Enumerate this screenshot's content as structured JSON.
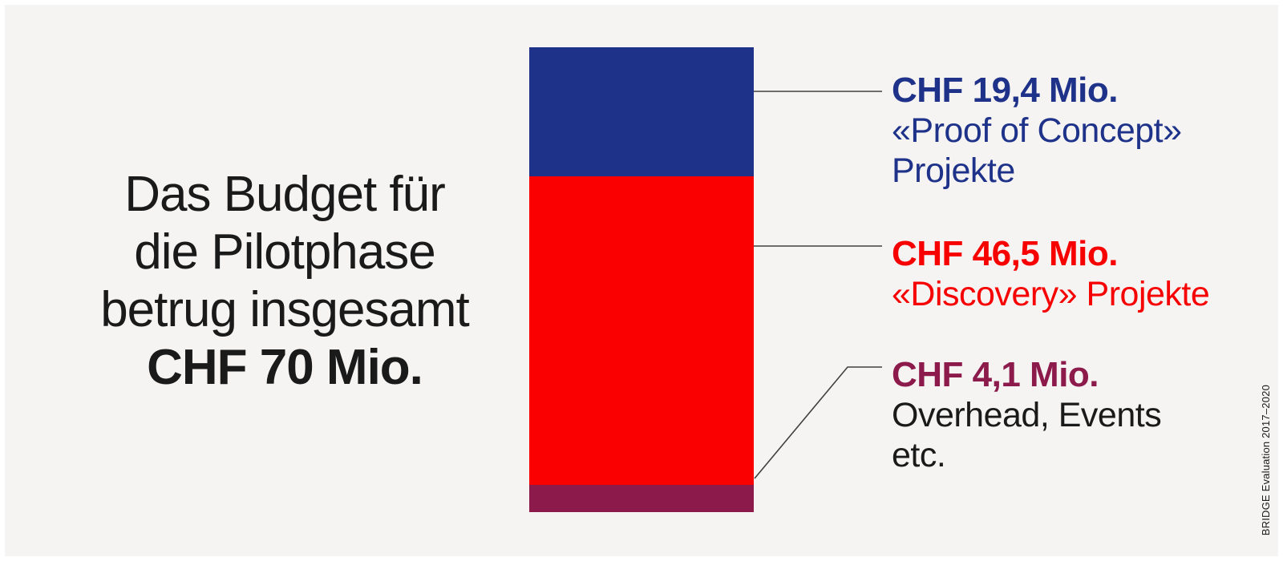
{
  "colors": {
    "background": "#f5f4f3",
    "frame": "#ffffff",
    "leader_line": "#404040",
    "text": "#1a1a1a"
  },
  "intro": {
    "lines": [
      "Das Budget für",
      "die Pilotphase",
      "betrug insgesamt"
    ],
    "total_line": "CHF 70 Mio."
  },
  "chart_data": {
    "type": "bar",
    "stacked": true,
    "orientation": "vertical",
    "unit": "CHF Mio.",
    "title": "Das Budget für die Pilotphase betrug insgesamt CHF 70 Mio.",
    "total": {
      "value": 70,
      "label": "CHF 70 Mio."
    },
    "legend_position": "right-callouts",
    "grid": false,
    "segments": [
      {
        "id": "proof-of-concept",
        "name": "«Proof of Concept» Projekte",
        "value": 19.4,
        "value_label": "CHF 19,4 Mio.",
        "color": "#1e3289",
        "label_color": "#1e3289",
        "desc_color": "#1e3289",
        "desc_lines": [
          "«Proof of Concept»",
          "Projekte"
        ]
      },
      {
        "id": "discovery",
        "name": "«Discovery» Projekte",
        "value": 46.5,
        "value_label": "CHF 46,5 Mio.",
        "color": "#fb0000",
        "label_color": "#f60000",
        "desc_color": "#f60000",
        "desc_lines": [
          "«Discovery» Projekte"
        ]
      },
      {
        "id": "overhead",
        "name": "Overhead, Events etc.",
        "value": 4.1,
        "value_label": "CHF 4,1 Mio.",
        "color": "#8c1a4b",
        "label_color": "#8c1a4b",
        "desc_color": "#1a1a1a",
        "desc_lines": [
          "Overhead, Events",
          "etc."
        ]
      }
    ]
  },
  "footer": {
    "credit": "BRIDGE Evaluation 2017–2020"
  }
}
